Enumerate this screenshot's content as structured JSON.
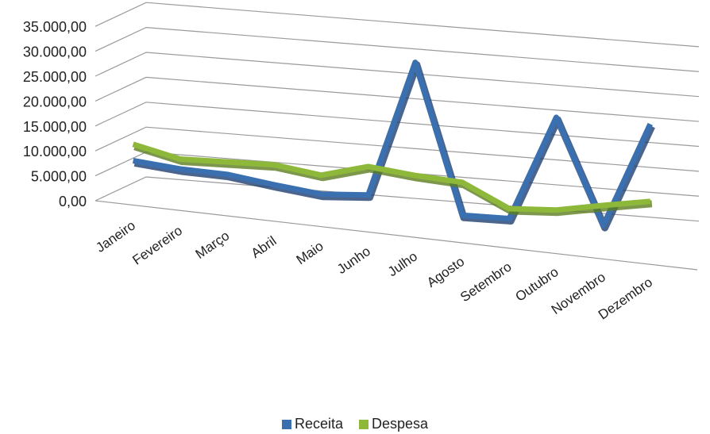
{
  "chart_data": {
    "type": "line",
    "title": "",
    "xlabel": "",
    "ylabel": "",
    "ylim": [
      0,
      35000
    ],
    "yticks": [
      "0,00",
      "5.000,00",
      "10.000,00",
      "15.000,00",
      "20.000,00",
      "25.000,00",
      "30.000,00",
      "35.000,00"
    ],
    "categories": [
      "Janeiro",
      "Fevereiro",
      "Março",
      "Abril",
      "Maio",
      "Junho",
      "Julho",
      "Agosto",
      "Setembro",
      "Outubro",
      "Novembro",
      "Dezembro"
    ],
    "series": [
      {
        "name": "Receita",
        "color": "#3a6fb0",
        "values": [
          6200,
          5200,
          4800,
          3400,
          2200,
          2700,
          30000,
          0,
          0,
          21000,
          0,
          21000
        ]
      },
      {
        "name": "Despesa",
        "color": "#8db83a",
        "values": [
          9500,
          7200,
          7300,
          7400,
          6000,
          8400,
          7300,
          6600,
          2000,
          2400,
          4000,
          5500
        ]
      }
    ],
    "grid": true,
    "legend_position": "bottom",
    "style": "3d-line"
  }
}
